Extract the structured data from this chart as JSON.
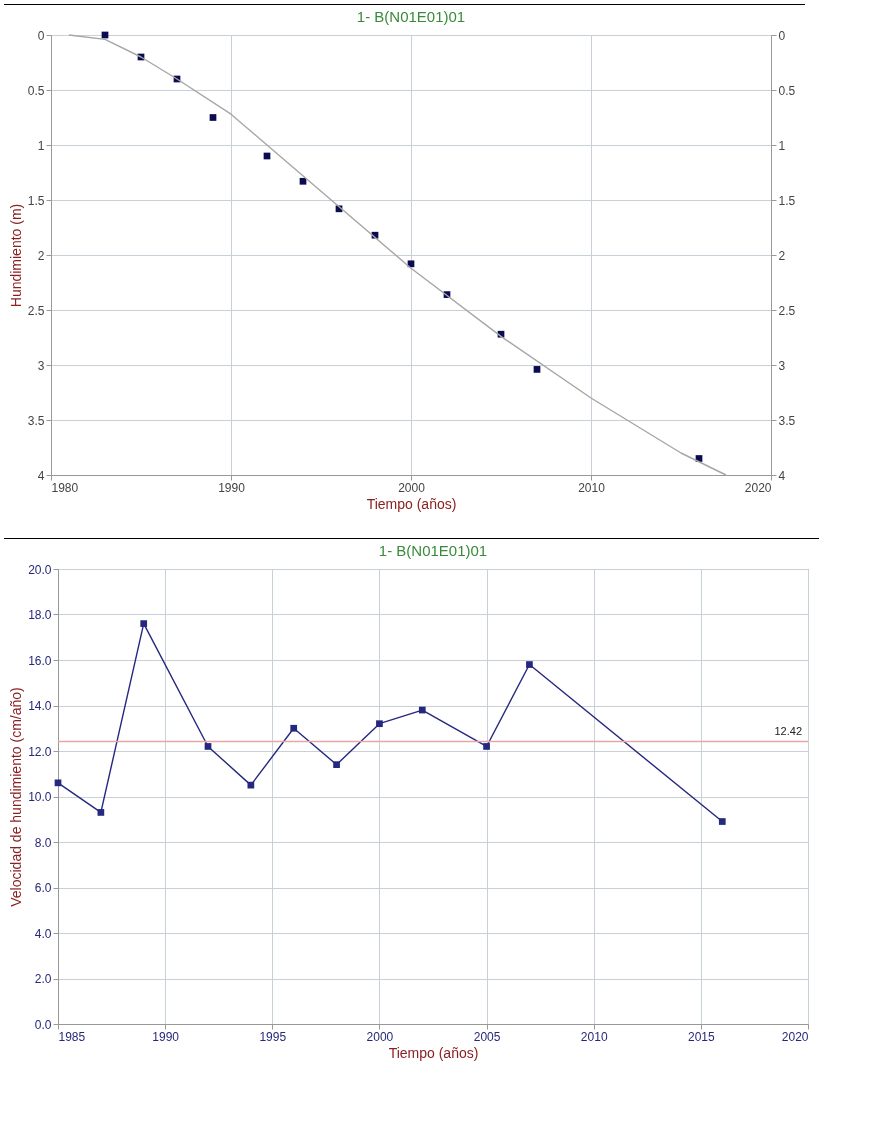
{
  "chart_data": [
    {
      "type": "scatter",
      "title": "1- B(N01E01)01",
      "xlabel": "Tiempo (años)",
      "ylabel": "Hundimiento (m)",
      "xlim": [
        1980,
        2020
      ],
      "xticks": [
        1980,
        1990,
        2000,
        2010,
        2020
      ],
      "ylim": [
        4,
        0
      ],
      "yticks": [
        0,
        0.5,
        1,
        1.5,
        2,
        2.5,
        3,
        3.5,
        4
      ],
      "y2lim": [
        4,
        0
      ],
      "y2ticks": [
        0,
        0.5,
        1,
        1.5,
        2,
        2.5,
        3,
        3.5,
        4
      ],
      "grid": true,
      "series": [
        {
          "type": "scatter",
          "marker": "square",
          "color": "#0b0b4f",
          "x": [
            1983,
            1985,
            1987,
            1989,
            1992,
            1994,
            1996,
            1998,
            2000,
            2002,
            2005,
            2007,
            2016
          ],
          "values": [
            0.0,
            0.2,
            0.4,
            0.75,
            1.1,
            1.33,
            1.58,
            1.82,
            2.08,
            2.36,
            2.72,
            3.04,
            3.85
          ]
        },
        {
          "type": "line",
          "color": "#a6a6a6",
          "x": [
            1981,
            1983,
            1985,
            1987,
            1990,
            1995,
            2000,
            2005,
            2010,
            2015,
            2017.5
          ],
          "values": [
            0.0,
            0.04,
            0.2,
            0.4,
            0.72,
            1.42,
            2.12,
            2.74,
            3.3,
            3.8,
            4.0
          ]
        }
      ]
    },
    {
      "type": "line",
      "title": "1- B(N01E01)01",
      "xlabel": "Tiempo (años)",
      "ylabel": "Velocidad de hundimiento (cm/año)",
      "xlim": [
        1985,
        2020
      ],
      "xticks": [
        1985,
        1990,
        1995,
        2000,
        2005,
        2010,
        2015,
        2020
      ],
      "ylim": [
        0,
        20
      ],
      "yticks": [
        {
          "value": 0,
          "label": "0.0"
        },
        {
          "value": 2,
          "label": "2.0"
        },
        {
          "value": 4,
          "label": "4.0"
        },
        {
          "value": 6,
          "label": "6.0"
        },
        {
          "value": 8,
          "label": "8.0"
        },
        {
          "value": 10,
          "label": "10.0"
        },
        {
          "value": 12,
          "label": "12.0"
        },
        {
          "value": 14,
          "label": "14.0"
        },
        {
          "value": 16,
          "label": "16.0"
        },
        {
          "value": 18,
          "label": "18.0"
        },
        {
          "value": 20,
          "label": "20.0"
        }
      ],
      "grid": true,
      "marker": "square",
      "series": [
        {
          "color": "#24287e",
          "x": [
            1985,
            1987,
            1989,
            1992,
            1994,
            1996,
            1998,
            2000,
            2002,
            2005,
            2007,
            2016
          ],
          "values": [
            10.6,
            9.3,
            17.6,
            12.2,
            10.5,
            13.0,
            11.4,
            13.2,
            13.8,
            12.2,
            15.8,
            8.9
          ]
        }
      ],
      "ref_lines": [
        {
          "axis": "y",
          "value": 12.42,
          "label": "12.42",
          "color": "#e8a6a6"
        }
      ]
    }
  ]
}
